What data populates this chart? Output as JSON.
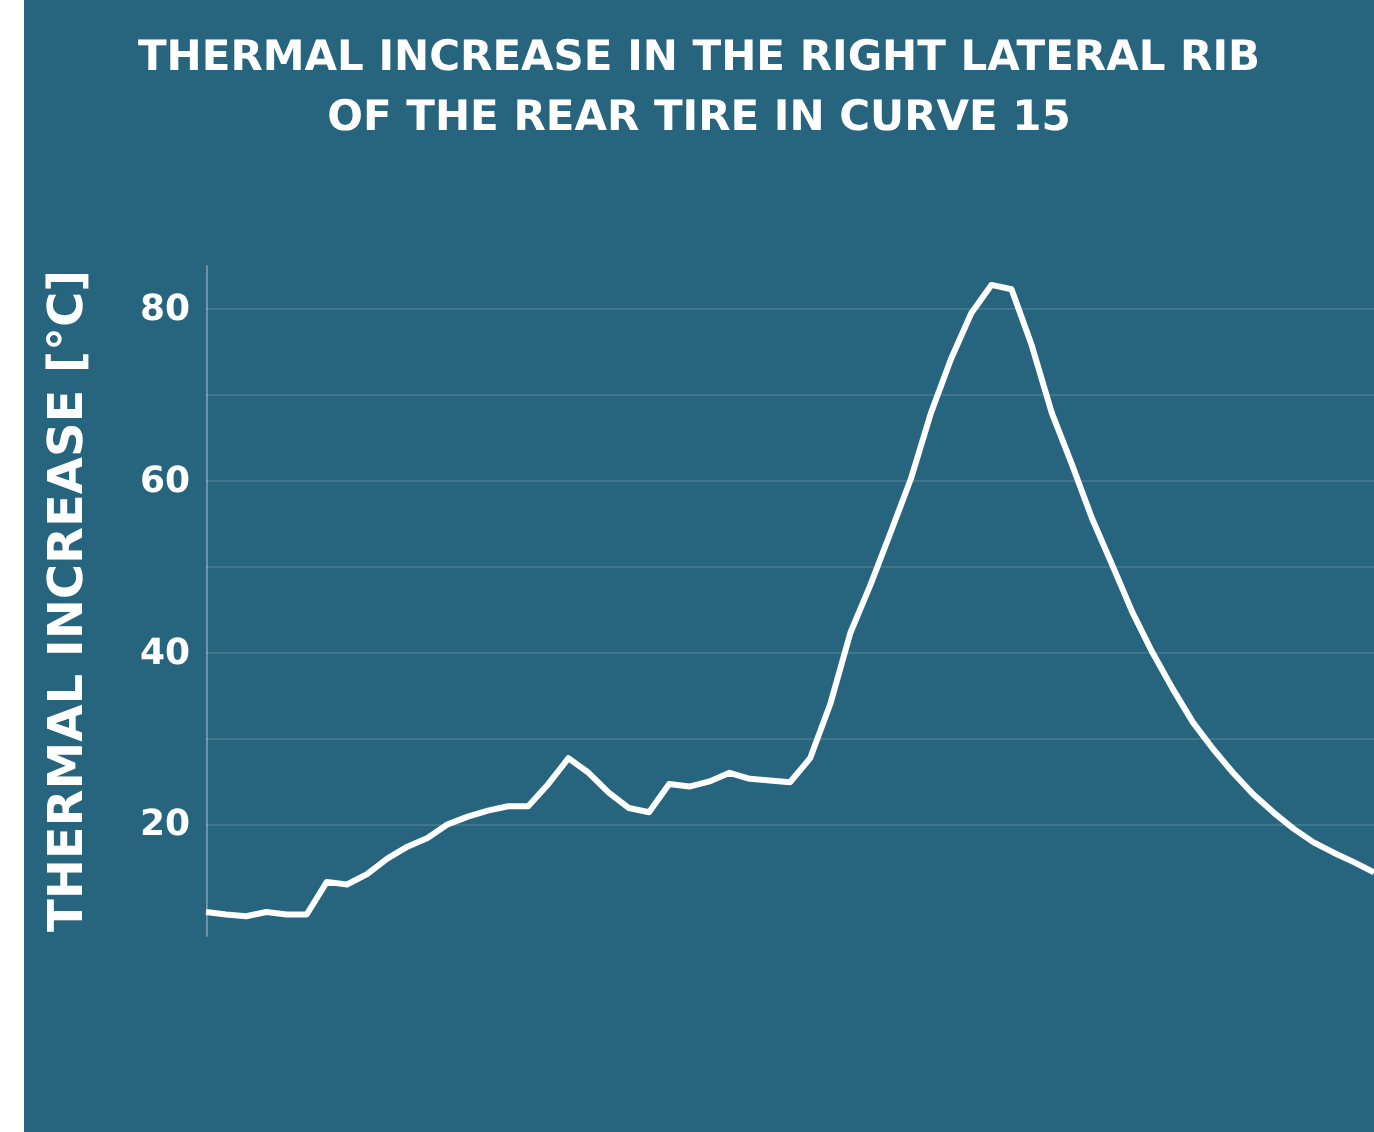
{
  "chart_data": {
    "type": "line",
    "title": "THERMAL INCREASE IN THE RIGHT LATERAL RIB\nOF THE REAR TIRE IN CURVE 15",
    "ylabel": "THERMAL INCREASE [°C]",
    "categories": [
      null,
      null,
      null,
      null,
      null,
      null,
      null,
      null,
      null,
      null,
      null,
      null,
      null,
      null,
      null,
      null,
      null,
      null,
      null,
      null,
      null,
      null,
      null,
      null,
      null,
      null,
      null,
      null,
      null,
      null,
      null,
      null,
      null,
      null,
      null,
      null,
      null,
      null,
      null,
      null,
      null,
      null,
      null,
      null,
      null,
      null,
      null,
      null,
      null,
      null,
      null,
      null,
      null,
      null,
      null,
      null,
      null,
      null,
      null
    ],
    "series": [
      {
        "color": "#ffffff",
        "values": [
          9.8,
          9.5,
          9.3,
          9.8,
          9.5,
          9.5,
          13.3,
          13.0,
          14.2,
          16.0,
          17.4,
          18.4,
          20.0,
          20.9,
          21.6,
          22.1,
          22.1,
          24.7,
          27.7,
          26.0,
          23.7,
          21.9,
          21.4,
          24.7,
          24.4,
          25.0,
          26.0,
          25.3,
          25.1,
          24.9,
          27.7,
          34.0,
          42.3,
          47.9,
          54.0,
          60.2,
          67.9,
          74.2,
          79.5,
          82.8,
          82.3,
          75.8,
          67.9,
          61.9,
          55.6,
          50.2,
          44.7,
          40.0,
          35.8,
          31.9,
          28.8,
          26.0,
          23.5,
          21.4,
          19.5,
          17.9,
          16.7,
          15.6,
          14.4
        ]
      }
    ],
    "ylim": [
      7,
      85
    ],
    "yticks": [
      20,
      {
        "value": 30,
        "label": null
      },
      40,
      {
        "value": 50,
        "label": null
      },
      60,
      {
        "value": 70,
        "label": null
      },
      80
    ],
    "grid": "y",
    "marker": "none",
    "line_style": "solid",
    "tick_labels": "y"
  }
}
